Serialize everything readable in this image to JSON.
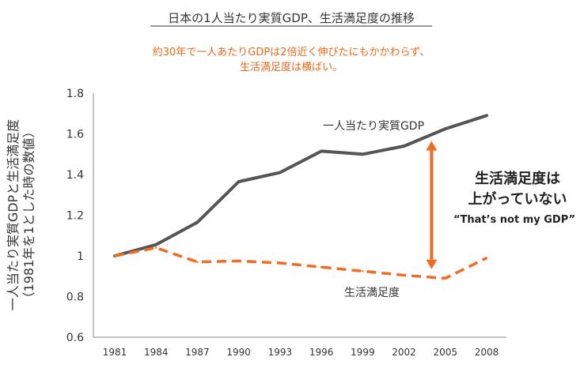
{
  "chart_data": {
    "type": "line",
    "title": "日本の1人当たり実質GDP、生活満足度の推移",
    "subtitle_lines": [
      "約30年で一人あたりGDPは2倍近く伸びたにもかかわらず、",
      "生活満足度は横ばい。"
    ],
    "ylabel_lines": [
      "一人当たり実質GDPと生活満足度",
      "（1981年を1とした時の数値）"
    ],
    "xlabel": "",
    "categories": [
      "1981",
      "1984",
      "1987",
      "1990",
      "1993",
      "1996",
      "1999",
      "2002",
      "2005",
      "2008"
    ],
    "ylim": [
      0.6,
      1.8
    ],
    "yticks": [
      {
        "value": 0.6,
        "label": "0.6"
      },
      {
        "value": 0.8,
        "label": "0.8"
      },
      {
        "value": 1.0,
        "label": "1"
      },
      {
        "value": 1.2,
        "label": "1.2"
      },
      {
        "value": 1.4,
        "label": "1.4"
      },
      {
        "value": 1.6,
        "label": "1.6"
      },
      {
        "value": 1.8,
        "label": "1.8"
      }
    ],
    "series": [
      {
        "name": "一人当たり実質GDP",
        "values": [
          1.0,
          1.055,
          1.165,
          1.365,
          1.41,
          1.515,
          1.5,
          1.54,
          1.625,
          1.69
        ],
        "color": "#555555",
        "style": "solid"
      },
      {
        "name": "生活満足度",
        "values": [
          1.0,
          1.04,
          0.97,
          0.975,
          0.965,
          0.945,
          0.925,
          0.905,
          0.89,
          0.99
        ],
        "color": "#f26b21",
        "style": "dashed"
      }
    ],
    "annotations": {
      "arrow_at_category": "2004",
      "arrow_from_value": 0.935,
      "arrow_to_value": 1.565,
      "arrow_color": "#f26b21",
      "text_main_lines": [
        "生活満足度は",
        "上がっていない"
      ],
      "text_sub": "“That’s not my GDP”"
    },
    "legend": "inline-labels"
  }
}
